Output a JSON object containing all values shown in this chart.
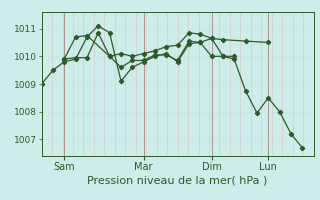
{
  "bg_color": "#ceecea",
  "grid_color_h": "#c8e8e5",
  "grid_color_v": "#dda0a0",
  "line_color": "#2d5a27",
  "xlabel": "Pression niveau de la mer( hPa )",
  "xlabel_fontsize": 8,
  "yticks": [
    1007,
    1008,
    1009,
    1010,
    1011
  ],
  "ylim": [
    1006.4,
    1011.6
  ],
  "xlim": [
    0,
    1.0
  ],
  "day_labels": [
    "Sam",
    "Mar",
    "Dim",
    "Lun"
  ],
  "day_positions": [
    0.083,
    0.375,
    0.625,
    0.833
  ],
  "series": [
    [
      0.0,
      1009.0,
      0.042,
      1009.5,
      0.083,
      1009.8,
      0.125,
      1009.9,
      0.167,
      1010.7,
      0.208,
      1011.1,
      0.25,
      1010.85,
      0.292,
      1009.1,
      0.333,
      1009.6,
      0.375,
      1009.8,
      0.417,
      1010.0,
      0.458,
      1010.1,
      0.5,
      1009.8,
      0.542,
      1010.45,
      0.583,
      1010.5,
      0.625,
      1010.0,
      0.667,
      1010.0,
      0.708,
      1009.9,
      0.75,
      1008.75,
      0.792,
      1007.95,
      0.833,
      1008.5,
      0.875,
      1008.0,
      0.917,
      1007.2,
      0.958,
      1006.7
    ],
    [
      0.083,
      1009.9,
      0.125,
      1010.7,
      0.167,
      1010.75,
      0.25,
      1010.0,
      0.292,
      1010.1,
      0.333,
      1010.0,
      0.375,
      1010.1,
      0.417,
      1010.2,
      0.458,
      1010.35,
      0.5,
      1010.4,
      0.542,
      1010.85,
      0.583,
      1010.8,
      0.625,
      1010.65,
      0.667,
      1010.6,
      0.75,
      1010.55,
      0.833,
      1010.5
    ],
    [
      0.083,
      1009.9,
      0.125,
      1009.95,
      0.167,
      1009.95,
      0.208,
      1010.85,
      0.25,
      1010.0,
      0.292,
      1009.6,
      0.333,
      1009.85,
      0.375,
      1009.85,
      0.417,
      1010.05,
      0.458,
      1010.05,
      0.5,
      1009.85,
      0.542,
      1010.55,
      0.583,
      1010.5,
      0.625,
      1010.65,
      0.667,
      1010.0,
      0.708,
      1010.0
    ]
  ]
}
